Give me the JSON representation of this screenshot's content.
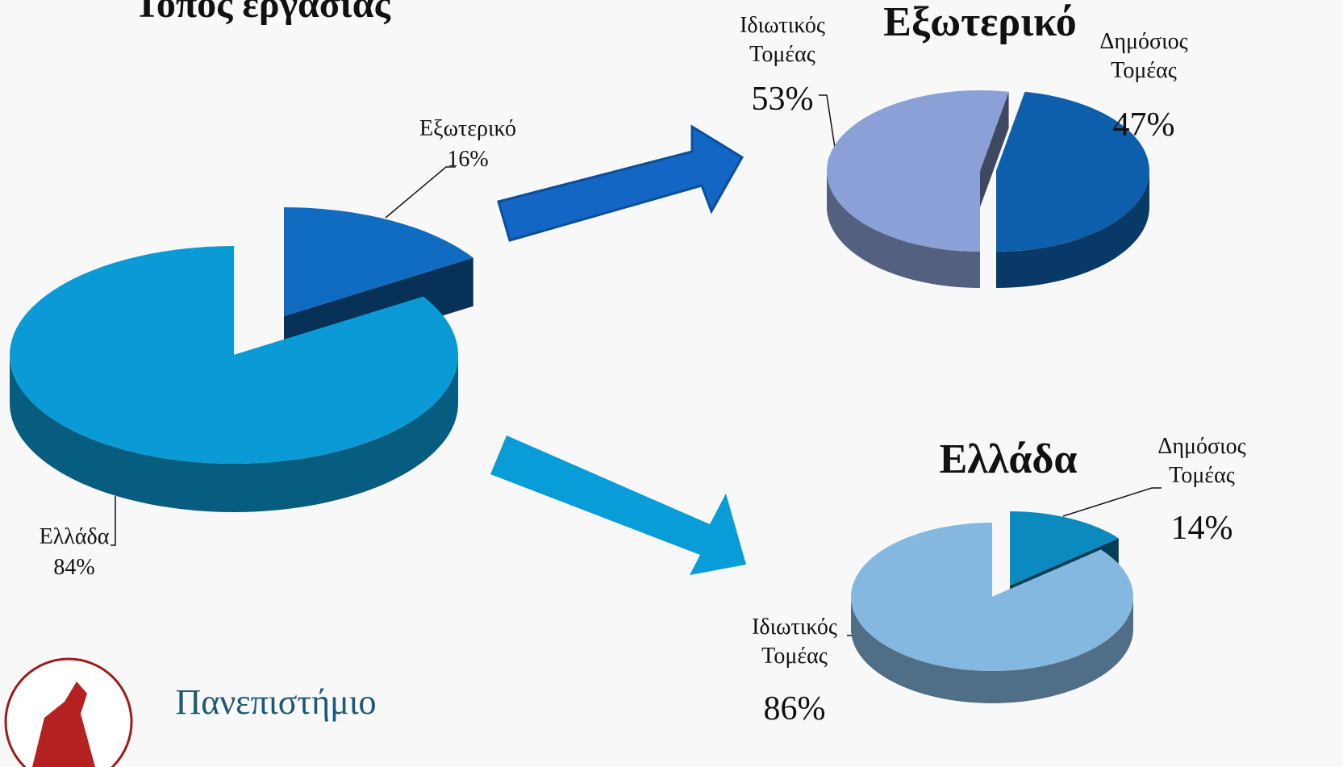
{
  "chart_data": [
    {
      "type": "pie",
      "title": "Τόπος εργασίας",
      "categories": [
        "Εξωτερικό",
        "Ελλάδα"
      ],
      "values": [
        16,
        84
      ],
      "value_labels": [
        "16%",
        "84%"
      ],
      "colors": [
        "#0f6cc0",
        "#0a9bd6"
      ]
    },
    {
      "type": "pie",
      "title": "Εξωτερικό",
      "categories": [
        "Ιδιωτικός Τομέας",
        "Δημόσιος Τομέας"
      ],
      "values": [
        53,
        47
      ],
      "value_labels": [
        "53%",
        "47%"
      ],
      "colors": [
        "#8aa0d6",
        "#0d5fab"
      ]
    },
    {
      "type": "pie",
      "title": "Ελλάδα",
      "categories": [
        "Δημόσιος Τομέας",
        "Ιδιωτικός Τομέας"
      ],
      "values": [
        14,
        86
      ],
      "value_labels": [
        "14%",
        "86%"
      ],
      "colors": [
        "#0b8ac0",
        "#85b8e0"
      ]
    }
  ],
  "footer": {
    "text": "Πανεπιστήμιο"
  }
}
